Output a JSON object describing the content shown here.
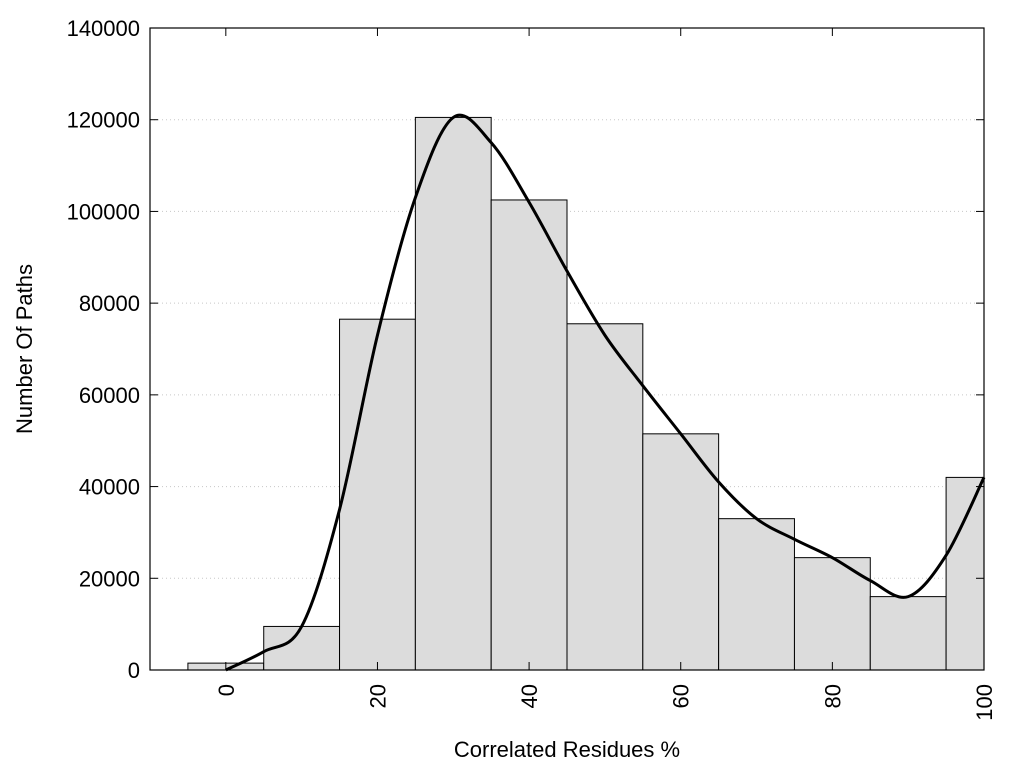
{
  "chart_data": {
    "type": "bar",
    "title": "",
    "xlabel": "Correlated Residues %",
    "ylabel": "Number Of Paths",
    "xlim": [
      -10,
      100
    ],
    "ylim": [
      0,
      140000
    ],
    "x_ticks": [
      "0",
      "20",
      "40",
      "60",
      "80",
      "100"
    ],
    "y_ticks": [
      "0",
      "20000",
      "40000",
      "60000",
      "80000",
      "100000",
      "120000",
      "140000"
    ],
    "grid": "horizontal dotted",
    "bar_width": 10,
    "bars": [
      {
        "x": 0,
        "value": 1500
      },
      {
        "x": 10,
        "value": 9500
      },
      {
        "x": 20,
        "value": 76500
      },
      {
        "x": 30,
        "value": 120500
      },
      {
        "x": 40,
        "value": 102500
      },
      {
        "x": 50,
        "value": 75500
      },
      {
        "x": 60,
        "value": 51500
      },
      {
        "x": 70,
        "value": 33000
      },
      {
        "x": 80,
        "value": 24500
      },
      {
        "x": 90,
        "value": 16000
      },
      {
        "x": 100,
        "value": 42000
      }
    ],
    "curve": [
      {
        "x": 0,
        "y": 0
      },
      {
        "x": 5,
        "y": 4000
      },
      {
        "x": 10,
        "y": 9500
      },
      {
        "x": 15,
        "y": 35000
      },
      {
        "x": 20,
        "y": 73000
      },
      {
        "x": 25,
        "y": 103000
      },
      {
        "x": 30,
        "y": 120500
      },
      {
        "x": 35,
        "y": 115000
      },
      {
        "x": 40,
        "y": 102000
      },
      {
        "x": 45,
        "y": 87000
      },
      {
        "x": 50,
        "y": 73000
      },
      {
        "x": 55,
        "y": 62000
      },
      {
        "x": 60,
        "y": 51500
      },
      {
        "x": 65,
        "y": 41000
      },
      {
        "x": 70,
        "y": 33000
      },
      {
        "x": 75,
        "y": 28500
      },
      {
        "x": 80,
        "y": 24500
      },
      {
        "x": 85,
        "y": 19500
      },
      {
        "x": 90,
        "y": 16000
      },
      {
        "x": 95,
        "y": 25000
      },
      {
        "x": 100,
        "y": 42000
      }
    ],
    "colors": {
      "bar_fill": "#dcdcdc",
      "bar_stroke": "#000000",
      "curve": "#000000",
      "grid": "#c8c8c8"
    }
  }
}
